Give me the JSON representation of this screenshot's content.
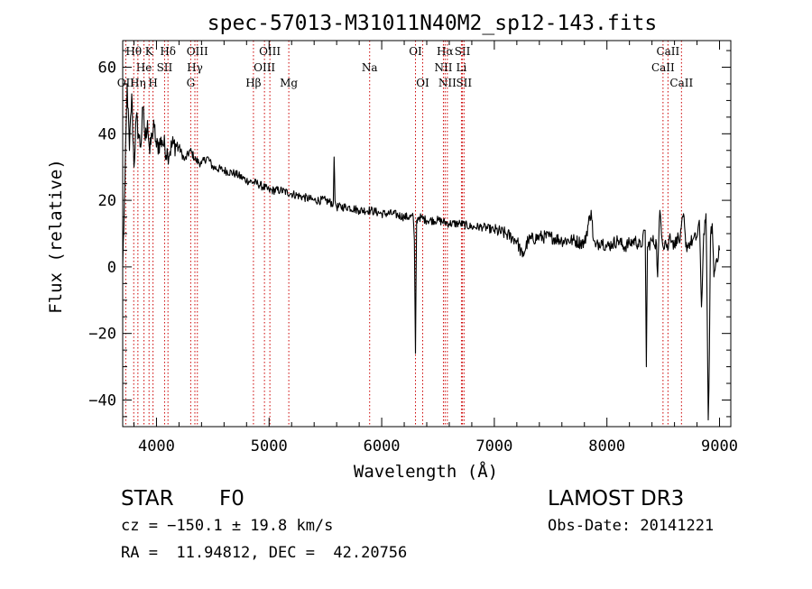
{
  "chart_data": {
    "type": "line",
    "title": "spec-57013-M31011N40M2_sp12-143.fits",
    "xlabel": "Wavelength (Å)",
    "ylabel": "Flux (relative)",
    "xlim": [
      3700,
      9100
    ],
    "ylim": [
      -48,
      68
    ],
    "xticks": [
      4000,
      5000,
      6000,
      7000,
      8000,
      9000
    ],
    "xtick_labels": [
      "4000",
      "5000",
      "6000",
      "7000",
      "8000",
      "9000"
    ],
    "yticks": [
      -40,
      -20,
      0,
      20,
      40,
      60
    ],
    "ytick_labels": [
      "−40",
      "−20",
      "0",
      "20",
      "40",
      "60"
    ],
    "grid": false,
    "series": [
      {
        "name": "flux",
        "x": [
          3700,
          3720,
          3740,
          3760,
          3780,
          3800,
          3820,
          3840,
          3860,
          3880,
          3900,
          3920,
          3940,
          3960,
          3980,
          4000,
          4050,
          4100,
          4150,
          4200,
          4250,
          4300,
          4350,
          4400,
          4450,
          4500,
          4600,
          4700,
          4800,
          4900,
          5000,
          5100,
          5200,
          5300,
          5400,
          5500,
          5570,
          5577,
          5585,
          5600,
          5700,
          5800,
          5900,
          6000,
          6100,
          6200,
          6280,
          6290,
          6300,
          6310,
          6330,
          6400,
          6500,
          6600,
          6700,
          6800,
          6900,
          7000,
          7100,
          7200,
          7250,
          7300,
          7400,
          7500,
          7600,
          7700,
          7800,
          7860,
          7880,
          7900,
          7950,
          8000,
          8050,
          8100,
          8150,
          8200,
          8250,
          8300,
          8340,
          8350,
          8360,
          8400,
          8440,
          8450,
          8470,
          8500,
          8520,
          8540,
          8560,
          8580,
          8600,
          8620,
          8650,
          8680,
          8700,
          8730,
          8760,
          8800,
          8820,
          8840,
          8860,
          8880,
          8900,
          8910,
          8920,
          8935,
          8950,
          8970,
          9000
        ],
        "y": [
          0,
          25,
          55,
          35,
          52,
          30,
          45,
          40,
          36,
          48,
          38,
          44,
          34,
          40,
          42,
          36,
          38,
          34,
          37,
          36,
          32,
          35,
          32,
          31,
          33,
          30,
          29,
          28,
          26,
          25,
          23,
          23,
          22,
          21,
          20,
          20,
          19,
          33,
          20,
          18,
          18,
          17,
          17,
          16,
          16,
          15,
          15,
          8,
          -26,
          14,
          15,
          14,
          14,
          13,
          13,
          12,
          12,
          11,
          10,
          8,
          3,
          8,
          9,
          9,
          8,
          8,
          7,
          17,
          8,
          6,
          8,
          6,
          7,
          8,
          6,
          7,
          8,
          6,
          11,
          -30,
          6,
          8,
          7,
          -3,
          17,
          6,
          8,
          5,
          10,
          8,
          6,
          9,
          8,
          16,
          6,
          7,
          8,
          9,
          14,
          -12,
          10,
          16,
          -46,
          -25,
          9,
          13,
          -3,
          2,
          5
        ]
      }
    ],
    "lines_top": [
      {
        "label": "Hθ",
        "x": 3798
      },
      {
        "label": "K",
        "x": 3934
      },
      {
        "label": "Hδ",
        "x": 4102
      },
      {
        "label": "OIII",
        "x": 4363
      },
      {
        "label": "OIII",
        "x": 5007
      },
      {
        "label": "OI",
        "x": 6300
      },
      {
        "label": "Hα",
        "x": 6563
      },
      {
        "label": "SII",
        "x": 6717
      },
      {
        "label": "CaII",
        "x": 8542
      }
    ],
    "lines_mid": [
      {
        "label": "He",
        "x": 3889
      },
      {
        "label": "SII",
        "x": 4072
      },
      {
        "label": "Hγ",
        "x": 4341
      },
      {
        "label": "OIII",
        "x": 4959
      },
      {
        "label": "Na",
        "x": 5893
      },
      {
        "label": "NII",
        "x": 6548
      },
      {
        "label": "Li",
        "x": 6708
      },
      {
        "label": "CaII",
        "x": 8498
      }
    ],
    "lines_bot": [
      {
        "label": "OII",
        "x": 3727
      },
      {
        "label": "Hη",
        "x": 3835
      },
      {
        "label": "H",
        "x": 3969
      },
      {
        "label": "G",
        "x": 4304
      },
      {
        "label": "Hβ",
        "x": 4861
      },
      {
        "label": "Mg",
        "x": 5175
      },
      {
        "label": "OI",
        "x": 6364
      },
      {
        "label": "NII",
        "x": 6583
      },
      {
        "label": "SII",
        "x": 6731
      },
      {
        "label": "CaII",
        "x": 8662
      }
    ]
  },
  "info": {
    "class": "STAR",
    "subclass": "F0",
    "survey": "LAMOST DR3",
    "cz": "cz = −150.1 ± 19.8 km/s",
    "obs_date": "Obs-Date: 20141221",
    "coords": "RA =  11.94812, DEC =  42.20756"
  },
  "colors": {
    "line_marker": "#cc0000",
    "spectrum": "#000000",
    "axis": "#000000"
  }
}
